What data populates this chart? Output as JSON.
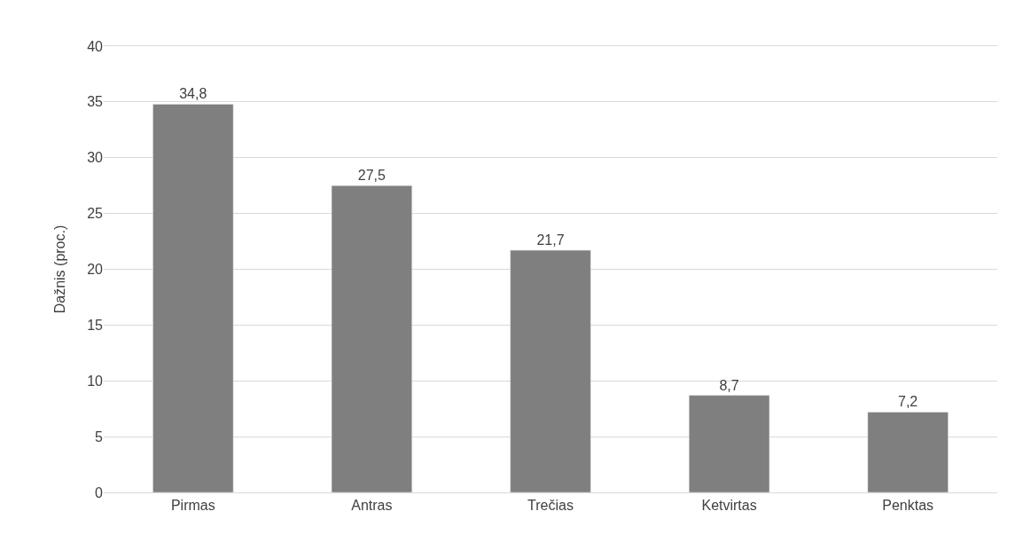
{
  "chart_data": {
    "type": "bar",
    "ylabel": "Dažnis (proc.)",
    "categories": [
      "Pirmas",
      "Antras",
      "Trečias",
      "Ketvirtas",
      "Penktas"
    ],
    "values": [
      34.8,
      27.5,
      21.7,
      8.7,
      7.2
    ],
    "value_labels": [
      "34,8",
      "27,5",
      "21,7",
      "8,7",
      "7,2"
    ],
    "color": "#7f7f7f",
    "ylim": [
      0,
      40
    ],
    "yticks": [
      0,
      5,
      10,
      15,
      20,
      25,
      30,
      35,
      40
    ],
    "grid": "y"
  }
}
